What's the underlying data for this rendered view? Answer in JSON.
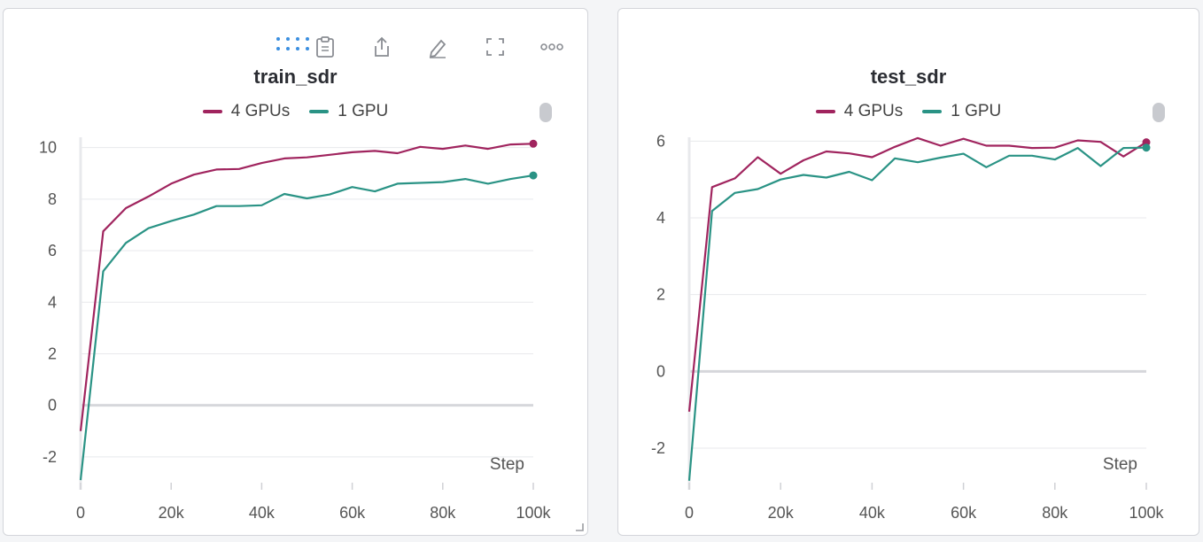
{
  "colors": {
    "series_4gpu": "#a0245e",
    "series_1gpu": "#2a9385",
    "grid": "#e8e9ec",
    "zero_line": "#d6d7db",
    "drag_dots": "#3b8fe0"
  },
  "icons": {
    "drag": "drag-handle-icon",
    "clipboard": "clipboard-icon",
    "share": "share-icon",
    "edit": "pencil-icon",
    "fullscreen": "fullscreen-icon",
    "more": "more-icon"
  },
  "panels": [
    {
      "title": "train_sdr",
      "legend": [
        {
          "label": "4 GPUs"
        },
        {
          "label": "1 GPU"
        }
      ],
      "step_label": "Step",
      "x_ticks": [
        "0",
        "20k",
        "40k",
        "60k",
        "80k",
        "100k"
      ],
      "y_ticks": [
        "10",
        "8",
        "6",
        "4",
        "2",
        "0",
        "-2"
      ]
    },
    {
      "title": "test_sdr",
      "legend": [
        {
          "label": "4 GPUs"
        },
        {
          "label": "1 GPU"
        }
      ],
      "step_label": "Step",
      "x_ticks": [
        "0",
        "20k",
        "40k",
        "60k",
        "80k",
        "100k"
      ],
      "y_ticks": [
        "6",
        "4",
        "2",
        "0",
        "-2"
      ]
    }
  ],
  "chart_data": [
    {
      "type": "line",
      "title": "train_sdr",
      "xlabel": "Step",
      "ylabel": "",
      "xlim": [
        0,
        100000
      ],
      "ylim": [
        -3,
        10.4
      ],
      "grid": true,
      "legend_position": "top",
      "x": [
        0,
        5000,
        10000,
        15000,
        20000,
        25000,
        30000,
        35000,
        40000,
        45000,
        50000,
        55000,
        60000,
        65000,
        70000,
        75000,
        80000,
        85000,
        90000,
        95000,
        100000
      ],
      "series": [
        {
          "name": "4 GPUs",
          "values": [
            -1.0,
            6.75,
            7.65,
            8.1,
            8.6,
            8.95,
            9.15,
            9.17,
            9.4,
            9.58,
            9.62,
            9.72,
            9.82,
            9.87,
            9.78,
            10.03,
            9.95,
            10.08,
            9.95,
            10.12,
            10.15
          ]
        },
        {
          "name": "1 GPU",
          "values": [
            -2.9,
            5.2,
            6.3,
            6.87,
            7.15,
            7.4,
            7.73,
            7.73,
            7.76,
            8.2,
            8.03,
            8.18,
            8.47,
            8.3,
            8.6,
            8.63,
            8.66,
            8.78,
            8.6,
            8.78,
            8.92
          ]
        }
      ]
    },
    {
      "type": "line",
      "title": "test_sdr",
      "xlabel": "Step",
      "ylabel": "",
      "xlim": [
        0,
        100000
      ],
      "ylim": [
        -2.9,
        6.1
      ],
      "grid": true,
      "legend_position": "top",
      "x": [
        0,
        5000,
        10000,
        15000,
        20000,
        25000,
        30000,
        35000,
        40000,
        45000,
        50000,
        55000,
        60000,
        65000,
        70000,
        75000,
        80000,
        85000,
        90000,
        95000,
        100000
      ],
      "series": [
        {
          "name": "4 GPUs",
          "values": [
            -1.05,
            4.8,
            5.03,
            5.58,
            5.15,
            5.5,
            5.73,
            5.68,
            5.58,
            5.85,
            6.08,
            5.88,
            6.06,
            5.88,
            5.88,
            5.82,
            5.83,
            6.02,
            5.98,
            5.6,
            5.97
          ]
        },
        {
          "name": "1 GPU",
          "values": [
            -2.85,
            4.18,
            4.65,
            4.75,
            5.0,
            5.12,
            5.05,
            5.2,
            4.98,
            5.55,
            5.45,
            5.57,
            5.67,
            5.32,
            5.62,
            5.62,
            5.52,
            5.82,
            5.35,
            5.82,
            5.83
          ]
        }
      ]
    }
  ]
}
